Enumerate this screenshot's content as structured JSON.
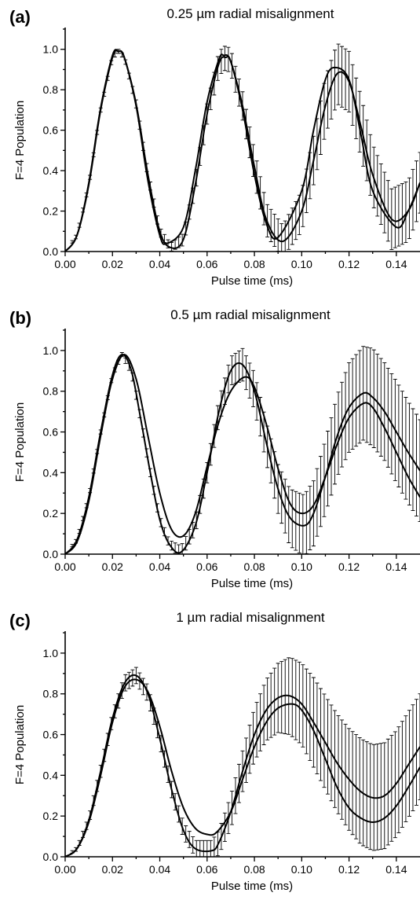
{
  "chart_data": [
    {
      "type": "line",
      "panel_label": "(a)",
      "title": "0.25 µm radial misalignment",
      "xlabel": "Pulse time (ms)",
      "ylabel": "F=4 Population",
      "xlim": [
        0.0,
        0.15
      ],
      "ylim": [
        0.0,
        1.1
      ],
      "xticks": [
        "0.00",
        "0.02",
        "0.04",
        "0.06",
        "0.08",
        "0.10",
        "0.12",
        "0.14"
      ],
      "yticks": [
        "0.0",
        "0.2",
        "0.4",
        "0.6",
        "0.8",
        "1.0"
      ],
      "errorbars": true,
      "series": [
        {
          "x": [
            0.0,
            0.005,
            0.01,
            0.015,
            0.02,
            0.0225,
            0.025,
            0.03,
            0.035,
            0.04,
            0.0445,
            0.05,
            0.055,
            0.06,
            0.065,
            0.068,
            0.07,
            0.075,
            0.08,
            0.085,
            0.092,
            0.1,
            0.105,
            0.11,
            0.115,
            0.12,
            0.125,
            0.13,
            0.138,
            0.145,
            0.15
          ],
          "y": [
            0.0,
            0.08,
            0.33,
            0.7,
            0.96,
            0.99,
            0.96,
            0.73,
            0.38,
            0.1,
            0.02,
            0.06,
            0.33,
            0.68,
            0.93,
            0.96,
            0.94,
            0.72,
            0.42,
            0.16,
            0.05,
            0.2,
            0.45,
            0.72,
            0.88,
            0.84,
            0.62,
            0.38,
            0.16,
            0.2,
            0.34
          ],
          "err": [
            0.0,
            0.01,
            0.01,
            0.01,
            0.01,
            0.01,
            0.01,
            0.02,
            0.02,
            0.02,
            0.02,
            0.03,
            0.04,
            0.05,
            0.06,
            0.06,
            0.06,
            0.07,
            0.08,
            0.08,
            0.08,
            0.1,
            0.12,
            0.14,
            0.15,
            0.15,
            0.15,
            0.15,
            0.15,
            0.15,
            0.15
          ]
        },
        {
          "x": [
            0.0,
            0.005,
            0.01,
            0.015,
            0.02,
            0.0225,
            0.025,
            0.03,
            0.035,
            0.04,
            0.043,
            0.05,
            0.055,
            0.06,
            0.065,
            0.067,
            0.07,
            0.075,
            0.08,
            0.085,
            0.09,
            0.1,
            0.105,
            0.11,
            0.114,
            0.12,
            0.125,
            0.13,
            0.14,
            0.145,
            0.15
          ],
          "y": [
            0.0,
            0.08,
            0.34,
            0.71,
            0.97,
            0.99,
            0.96,
            0.72,
            0.35,
            0.08,
            0.04,
            0.12,
            0.4,
            0.74,
            0.95,
            0.97,
            0.94,
            0.7,
            0.38,
            0.14,
            0.07,
            0.3,
            0.6,
            0.85,
            0.91,
            0.85,
            0.58,
            0.3,
            0.12,
            0.2,
            0.34
          ],
          "err": []
        }
      ]
    },
    {
      "type": "line",
      "panel_label": "(b)",
      "title": "0.5 µm radial misalignment",
      "xlabel": "Pulse time (ms)",
      "ylabel": "F=4 Population",
      "xlim": [
        0.0,
        0.15
      ],
      "ylim": [
        0.0,
        1.1
      ],
      "xticks": [
        "0.00",
        "0.02",
        "0.04",
        "0.06",
        "0.08",
        "0.10",
        "0.12",
        "0.14"
      ],
      "yticks": [
        "0.0",
        "0.2",
        "0.4",
        "0.6",
        "0.8",
        "1.0"
      ],
      "errorbars": true,
      "series": [
        {
          "x": [
            0.0,
            0.005,
            0.01,
            0.015,
            0.02,
            0.024,
            0.028,
            0.032,
            0.036,
            0.04,
            0.044,
            0.049,
            0.055,
            0.06,
            0.065,
            0.07,
            0.075,
            0.08,
            0.085,
            0.09,
            0.095,
            0.101,
            0.105,
            0.11,
            0.115,
            0.12,
            0.126,
            0.13,
            0.135,
            0.14,
            0.145,
            0.15
          ],
          "y": [
            0.0,
            0.07,
            0.28,
            0.6,
            0.88,
            0.98,
            0.9,
            0.66,
            0.4,
            0.17,
            0.05,
            0.01,
            0.14,
            0.4,
            0.7,
            0.9,
            0.93,
            0.8,
            0.55,
            0.32,
            0.18,
            0.14,
            0.2,
            0.38,
            0.58,
            0.72,
            0.79,
            0.77,
            0.7,
            0.6,
            0.5,
            0.41
          ],
          "err": [
            0.0,
            0.01,
            0.01,
            0.01,
            0.01,
            0.01,
            0.02,
            0.02,
            0.02,
            0.02,
            0.02,
            0.03,
            0.04,
            0.05,
            0.06,
            0.07,
            0.08,
            0.09,
            0.1,
            0.12,
            0.14,
            0.15,
            0.16,
            0.18,
            0.2,
            0.22,
            0.23,
            0.24,
            0.24,
            0.25,
            0.25,
            0.25
          ]
        },
        {
          "x": [
            0.0,
            0.005,
            0.01,
            0.015,
            0.02,
            0.025,
            0.03,
            0.035,
            0.04,
            0.045,
            0.05,
            0.055,
            0.06,
            0.065,
            0.07,
            0.076,
            0.08,
            0.085,
            0.09,
            0.095,
            0.1,
            0.105,
            0.11,
            0.115,
            0.12,
            0.126,
            0.13,
            0.135,
            0.14,
            0.145,
            0.15
          ],
          "y": [
            0.0,
            0.06,
            0.26,
            0.58,
            0.86,
            0.98,
            0.86,
            0.58,
            0.3,
            0.12,
            0.09,
            0.2,
            0.43,
            0.65,
            0.8,
            0.87,
            0.82,
            0.64,
            0.42,
            0.25,
            0.2,
            0.24,
            0.38,
            0.54,
            0.67,
            0.74,
            0.72,
            0.62,
            0.5,
            0.38,
            0.28
          ],
          "err": []
        }
      ]
    },
    {
      "type": "line",
      "panel_label": "(c)",
      "title": "1 µm radial misalignment",
      "xlabel": "Pulse time (ms)",
      "ylabel": "F=4 Population",
      "xlim": [
        0.0,
        0.15
      ],
      "ylim": [
        0.0,
        1.1
      ],
      "xticks": [
        "0.00",
        "0.02",
        "0.04",
        "0.06",
        "0.08",
        "0.10",
        "0.12",
        "0.14"
      ],
      "yticks": [
        "0.0",
        "0.2",
        "0.4",
        "0.6",
        "0.8",
        "1.0"
      ],
      "errorbars": true,
      "series": [
        {
          "x": [
            0.0,
            0.005,
            0.01,
            0.015,
            0.02,
            0.025,
            0.03,
            0.035,
            0.04,
            0.045,
            0.05,
            0.055,
            0.062,
            0.065,
            0.07,
            0.075,
            0.08,
            0.085,
            0.09,
            0.095,
            0.1,
            0.105,
            0.11,
            0.115,
            0.12,
            0.125,
            0.13,
            0.135,
            0.14,
            0.145,
            0.15
          ],
          "y": [
            0.0,
            0.04,
            0.18,
            0.42,
            0.68,
            0.85,
            0.89,
            0.8,
            0.58,
            0.33,
            0.13,
            0.04,
            0.03,
            0.07,
            0.22,
            0.42,
            0.6,
            0.72,
            0.78,
            0.79,
            0.75,
            0.66,
            0.56,
            0.46,
            0.38,
            0.32,
            0.29,
            0.3,
            0.36,
            0.45,
            0.54
          ],
          "err": [
            0.0,
            0.01,
            0.02,
            0.03,
            0.03,
            0.04,
            0.04,
            0.04,
            0.04,
            0.04,
            0.04,
            0.04,
            0.05,
            0.06,
            0.08,
            0.1,
            0.13,
            0.15,
            0.17,
            0.19,
            0.2,
            0.22,
            0.23,
            0.24,
            0.25,
            0.26,
            0.26,
            0.26,
            0.26,
            0.26,
            0.26
          ]
        },
        {
          "x": [
            0.0,
            0.005,
            0.01,
            0.015,
            0.02,
            0.025,
            0.03,
            0.035,
            0.04,
            0.045,
            0.05,
            0.055,
            0.06,
            0.064,
            0.07,
            0.075,
            0.08,
            0.085,
            0.09,
            0.096,
            0.1,
            0.105,
            0.11,
            0.115,
            0.12,
            0.125,
            0.13,
            0.135,
            0.14,
            0.145,
            0.15
          ],
          "y": [
            0.0,
            0.04,
            0.17,
            0.4,
            0.66,
            0.83,
            0.87,
            0.81,
            0.64,
            0.42,
            0.24,
            0.14,
            0.11,
            0.12,
            0.22,
            0.38,
            0.54,
            0.66,
            0.73,
            0.75,
            0.72,
            0.62,
            0.48,
            0.34,
            0.24,
            0.19,
            0.17,
            0.19,
            0.25,
            0.34,
            0.44
          ],
          "err": []
        }
      ]
    }
  ]
}
